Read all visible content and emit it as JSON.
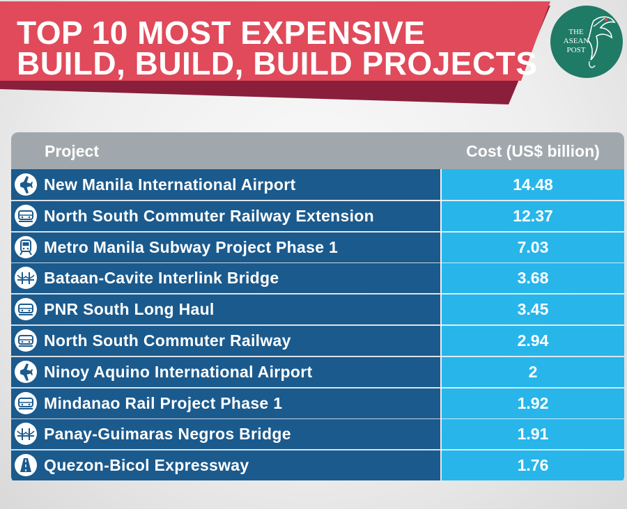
{
  "header": {
    "title_line1": "TOP 10 MOST EXPENSIVE",
    "title_line2": "BUILD, BUILD, BUILD PROJECTS"
  },
  "logo": {
    "line1": "THE",
    "line2": "ASEAN",
    "line3": "POST"
  },
  "colors": {
    "banner_red": "#e04a5a",
    "banner_shadow": "#8a1f3c",
    "project_cell": "#1b5a8d",
    "cost_cell": "#28b5ea",
    "header_gray": "#a1a8ad",
    "logo_green": "#1f7a66"
  },
  "chart_data": {
    "type": "table",
    "columns": [
      "Project",
      "Cost (US$ billion)"
    ],
    "rows": [
      {
        "project": "New Manila International Airport",
        "cost": "14.48",
        "icon": "airplane-icon"
      },
      {
        "project": "North South Commuter Railway Extension",
        "cost": "12.37",
        "icon": "train-icon"
      },
      {
        "project": "Metro Manila Subway Project Phase 1",
        "cost": "7.03",
        "icon": "subway-icon"
      },
      {
        "project": "Bataan-Cavite Interlink Bridge",
        "cost": "3.68",
        "icon": "bridge-icon"
      },
      {
        "project": "PNR South Long Haul",
        "cost": "3.45",
        "icon": "train-icon"
      },
      {
        "project": "North South Commuter Railway",
        "cost": "2.94",
        "icon": "train-icon"
      },
      {
        "project": "Ninoy Aquino International Airport",
        "cost": "2",
        "icon": "airplane-icon"
      },
      {
        "project": "Mindanao Rail Project Phase 1",
        "cost": "1.92",
        "icon": "train-icon"
      },
      {
        "project": "Panay-Guimaras Negros Bridge",
        "cost": "1.91",
        "icon": "bridge-icon"
      },
      {
        "project": "Quezon-Bicol Expressway",
        "cost": "1.76",
        "icon": "road-icon"
      }
    ]
  }
}
